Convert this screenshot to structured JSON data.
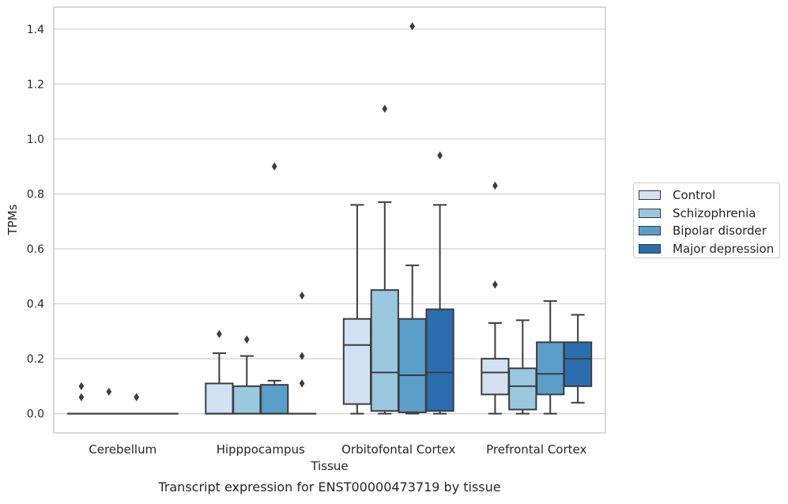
{
  "chart_data": {
    "type": "box",
    "title": "Transcript expression for ENST00000473719 by tissue",
    "xlabel": "Tissue",
    "ylabel": "TPMs",
    "ylim": [
      -0.07,
      1.48
    ],
    "yticks": [
      "0.0",
      "0.2",
      "0.4",
      "0.6",
      "0.8",
      "1.0",
      "1.2",
      "1.4"
    ],
    "categories": [
      "Cerebellum",
      "Hipppocampus",
      "Orbitofontal Cortex",
      "Prefrontal Cortex"
    ],
    "grid": "horizontal",
    "legend_position": "right",
    "series": [
      {
        "name": "Control",
        "color": "#d2e2f2",
        "boxes": [
          {
            "q1": 0,
            "median": 0,
            "q3": 0,
            "whisker_low": 0,
            "whisker_high": 0,
            "outliers": [
              0.06,
              0.1
            ]
          },
          {
            "q1": 0,
            "median": 0,
            "q3": 0.11,
            "whisker_low": 0,
            "whisker_high": 0.22,
            "outliers": [
              0.29
            ]
          },
          {
            "q1": 0.035,
            "median": 0.25,
            "q3": 0.345,
            "whisker_low": 0,
            "whisker_high": 0.76,
            "outliers": []
          },
          {
            "q1": 0.07,
            "median": 0.15,
            "q3": 0.2,
            "whisker_low": 0,
            "whisker_high": 0.33,
            "outliers": [
              0.47,
              0.83
            ]
          }
        ]
      },
      {
        "name": "Schizophrenia",
        "color": "#9ac8e0",
        "boxes": [
          {
            "q1": 0,
            "median": 0,
            "q3": 0,
            "whisker_low": 0,
            "whisker_high": 0,
            "outliers": [
              0.08
            ]
          },
          {
            "q1": 0,
            "median": 0,
            "q3": 0.1,
            "whisker_low": 0,
            "whisker_high": 0.21,
            "outliers": [
              0.27
            ]
          },
          {
            "q1": 0.01,
            "median": 0.15,
            "q3": 0.45,
            "whisker_low": 0,
            "whisker_high": 0.77,
            "outliers": [
              1.11
            ]
          },
          {
            "q1": 0.015,
            "median": 0.1,
            "q3": 0.165,
            "whisker_low": 0,
            "whisker_high": 0.34,
            "outliers": []
          }
        ]
      },
      {
        "name": "Bipolar disorder",
        "color": "#5a9ec9",
        "boxes": [
          {
            "q1": 0,
            "median": 0,
            "q3": 0,
            "whisker_low": 0,
            "whisker_high": 0,
            "outliers": [
              0.06
            ]
          },
          {
            "q1": 0,
            "median": 0,
            "q3": 0.105,
            "whisker_low": 0,
            "whisker_high": 0.12,
            "outliers": [
              0.9
            ]
          },
          {
            "q1": 0.005,
            "median": 0.14,
            "q3": 0.345,
            "whisker_low": 0,
            "whisker_high": 0.54,
            "outliers": [
              1.41
            ]
          },
          {
            "q1": 0.07,
            "median": 0.145,
            "q3": 0.26,
            "whisker_low": 0,
            "whisker_high": 0.41,
            "outliers": []
          }
        ]
      },
      {
        "name": "Major depression",
        "color": "#2a6eb0",
        "boxes": [
          {
            "q1": 0,
            "median": 0,
            "q3": 0,
            "whisker_low": 0,
            "whisker_high": 0,
            "outliers": []
          },
          {
            "q1": 0,
            "median": 0,
            "q3": 0,
            "whisker_low": 0,
            "whisker_high": 0,
            "outliers": [
              0.11,
              0.21,
              0.43
            ]
          },
          {
            "q1": 0.01,
            "median": 0.15,
            "q3": 0.38,
            "whisker_low": 0,
            "whisker_high": 0.76,
            "outliers": [
              0.94
            ]
          },
          {
            "q1": 0.1,
            "median": 0.2,
            "q3": 0.26,
            "whisker_low": 0.04,
            "whisker_high": 0.36,
            "outliers": []
          }
        ]
      }
    ]
  }
}
